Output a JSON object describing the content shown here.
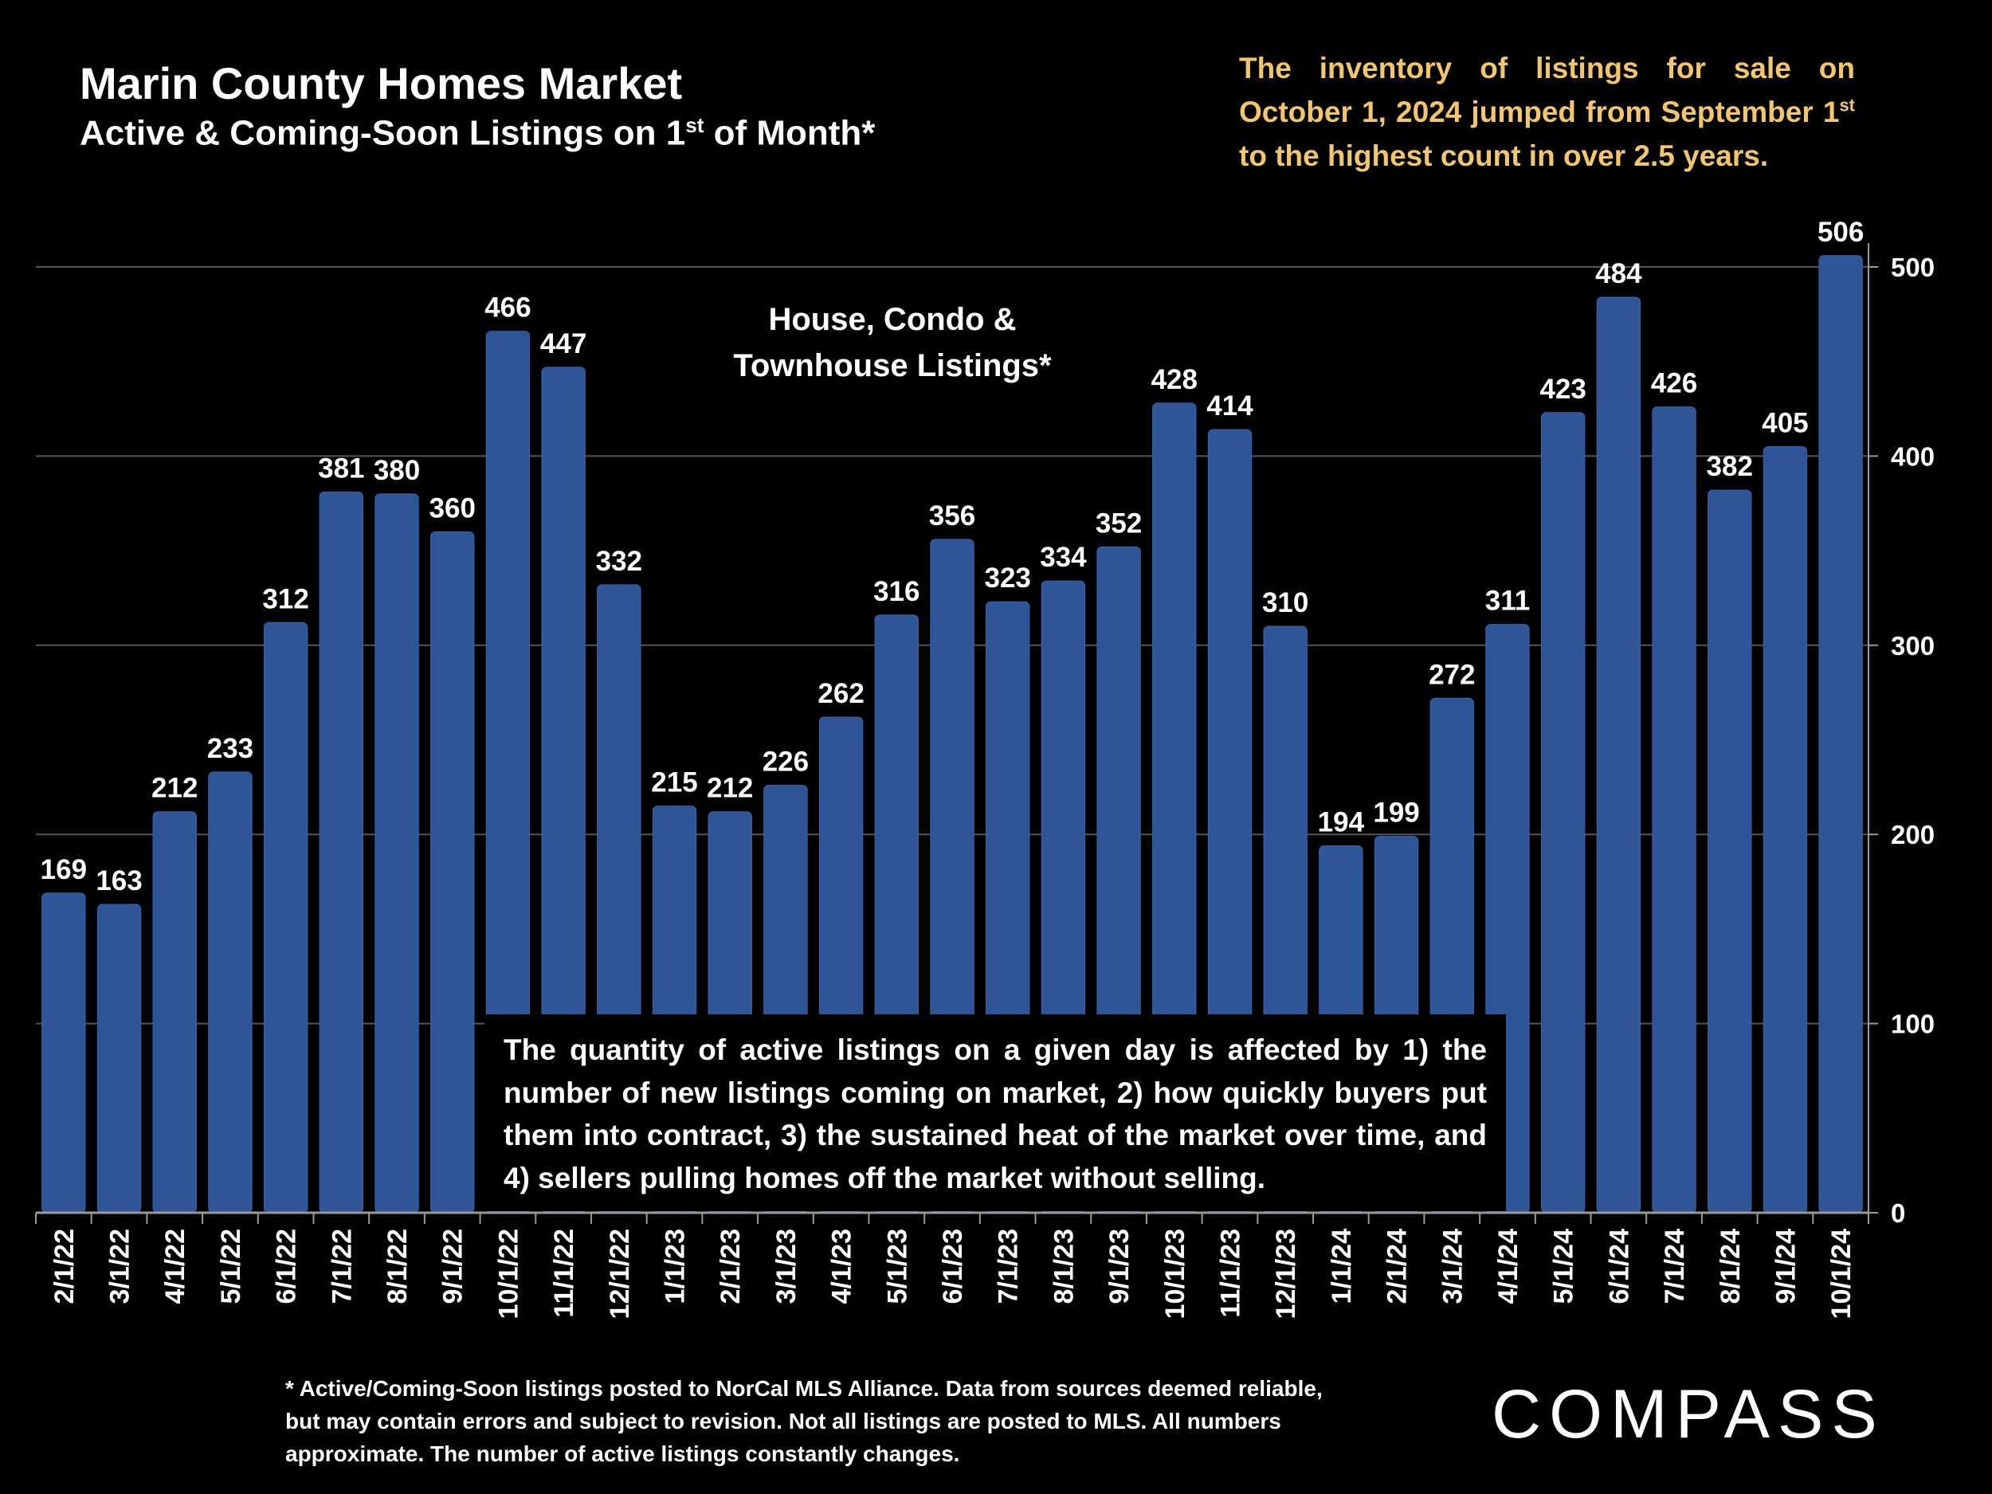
{
  "header": {
    "title": "Marin County Homes Market",
    "subtitle_pre": "Active & Coming-Soon Listings on 1",
    "subtitle_sup": "st",
    "subtitle_post": " of Month*"
  },
  "callout": {
    "line_a": "The inventory of listings for sale on October 1, 2024 jumped from September 1",
    "sup": "st",
    "line_b": " to the highest count in over 2.5 years."
  },
  "series_label": "House, Condo & Townhouse Listings*",
  "note": "The quantity of active listings on a given day is affected by 1) the number of new listings coming on market, 2) how quickly buyers put them into contract, 3) the sustained heat of the market over time, and 4) sellers pulling homes off the market without selling.",
  "footnote": "* Active/Coming-Soon listings posted to NorCal MLS Alliance.  Data from sources deemed reliable, but may contain errors and subject to revision.  Not all listings are posted to MLS. All numbers approximate. The number of active listings constantly changes.",
  "logo": "COMPASS",
  "chart_data": {
    "type": "bar",
    "categories": [
      "2/1/22",
      "3/1/22",
      "4/1/22",
      "5/1/22",
      "6/1/22",
      "7/1/22",
      "8/1/22",
      "9/1/22",
      "10/1/22",
      "11/1/22",
      "12/1/22",
      "1/1/23",
      "2/1/23",
      "3/1/23",
      "4/1/23",
      "5/1/23",
      "6/1/23",
      "7/1/23",
      "8/1/23",
      "9/1/23",
      "10/1/23",
      "11/1/23",
      "12/1/23",
      "1/1/24",
      "2/1/24",
      "3/1/24",
      "4/1/24",
      "5/1/24",
      "6/1/24",
      "7/1/24",
      "8/1/24",
      "9/1/24",
      "10/1/24"
    ],
    "values": [
      169,
      163,
      212,
      233,
      312,
      381,
      380,
      360,
      466,
      447,
      332,
      215,
      212,
      226,
      262,
      316,
      356,
      323,
      334,
      352,
      428,
      414,
      310,
      194,
      199,
      272,
      311,
      423,
      484,
      426,
      382,
      405,
      506
    ],
    "yticks": [
      0,
      100,
      200,
      300,
      400,
      500
    ],
    "ylim": [
      0,
      500
    ],
    "y_axis_side": "right",
    "grid": true,
    "data_labels": true,
    "colors": {
      "bar": "#2e5597",
      "bar_edge": "#3a64aa",
      "grid": "#555555",
      "axis": "#9a9a9a",
      "callout": "#f2c66d"
    }
  }
}
